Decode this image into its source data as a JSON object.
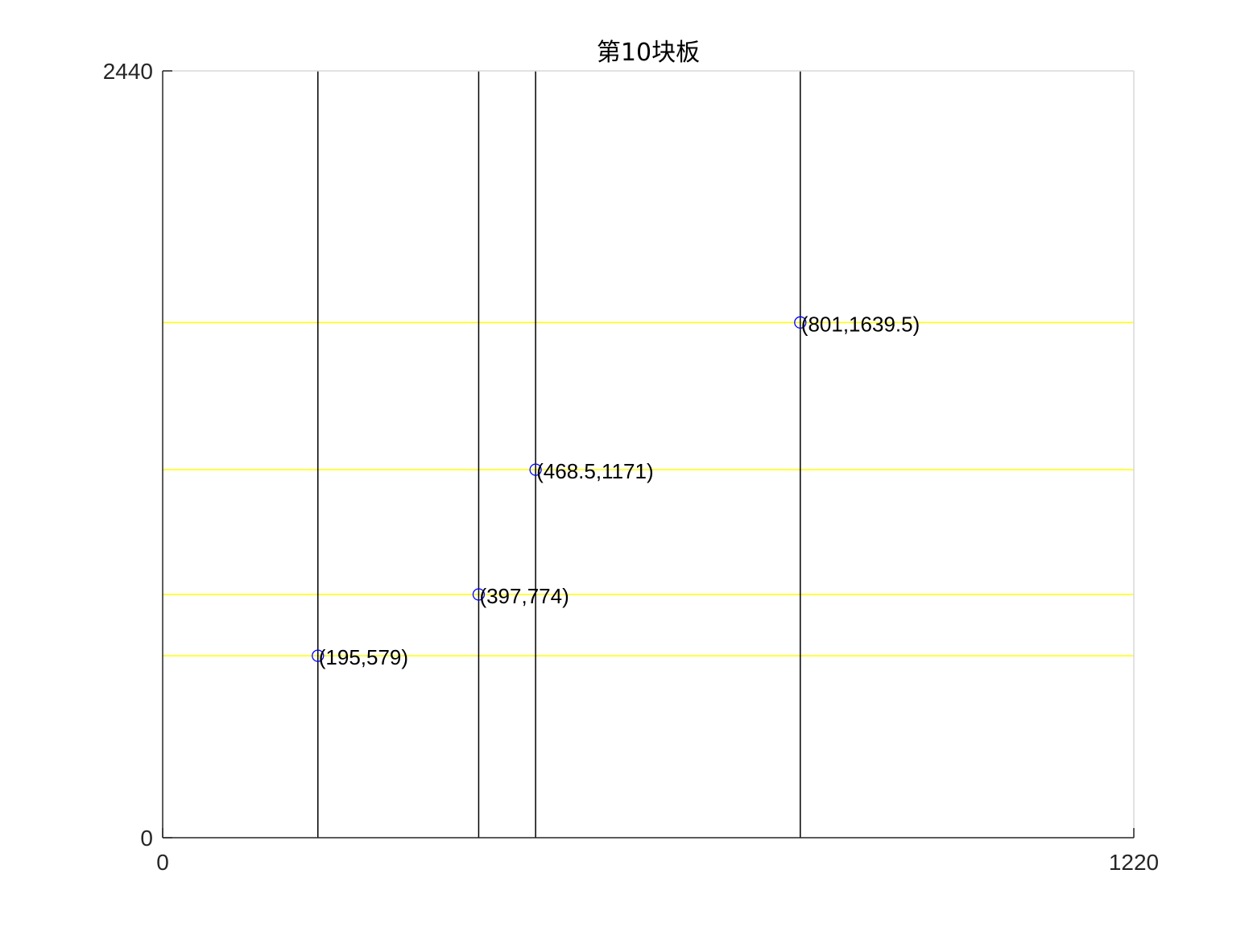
{
  "chart_data": {
    "type": "scatter",
    "title": "第10块板",
    "xlabel": "",
    "ylabel": "",
    "xlim": [
      0,
      1220
    ],
    "ylim": [
      0,
      2440
    ],
    "x_ticks": [
      "0",
      "1220"
    ],
    "y_ticks": [
      "0",
      "2440"
    ],
    "grid": false,
    "vertical_cut_lines_x": [
      195,
      397,
      468.5,
      801
    ],
    "horizontal_cut_lines_y": [
      579,
      774,
      1171,
      1639.5
    ],
    "points": [
      {
        "x": 195,
        "y": 579,
        "label": "(195,579)"
      },
      {
        "x": 397,
        "y": 774,
        "label": "(397,774)"
      },
      {
        "x": 468.5,
        "y": 1171,
        "label": "(468.5,1171)"
      },
      {
        "x": 801,
        "y": 1639.5,
        "label": "(801,1639.5)"
      }
    ],
    "colors": {
      "vertical_lines": "#000000",
      "horizontal_lines": "#ffff00",
      "markers": "#0000ff",
      "axes": "#262626",
      "box": "#d9d9d9"
    }
  }
}
